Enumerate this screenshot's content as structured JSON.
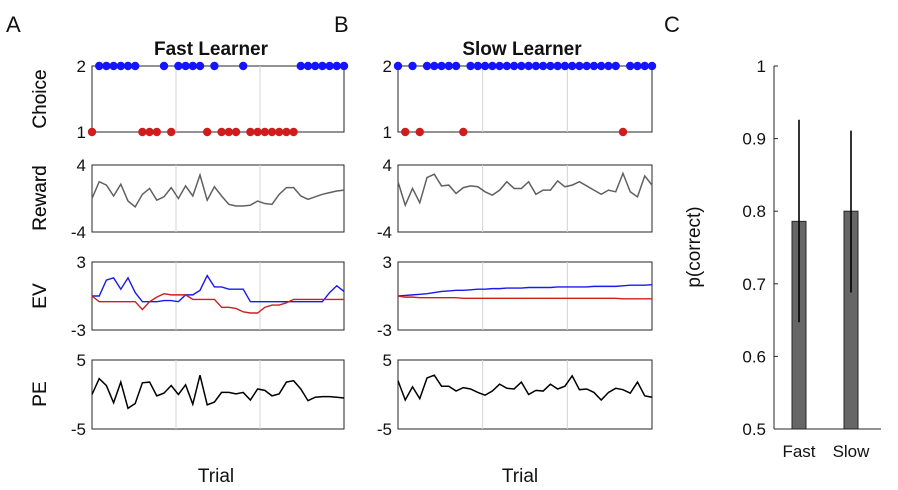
{
  "panel_letters": [
    "A",
    "B",
    "C"
  ],
  "colors": {
    "choice_high": "#1414ff",
    "choice_low": "#d01c1c",
    "ev_option2": "#1a1aee",
    "ev_option1": "#cc1f1f",
    "reward_line": "#606060",
    "pe_line": "#000000",
    "bar_fill": "#666666",
    "grid": "#d3d3d3"
  },
  "chart_data": [
    {
      "type": "scatter",
      "panel": "A",
      "title": "Fast Learner",
      "ylabel": "Choice",
      "xlabel": "Trial",
      "ylim": [
        1,
        2
      ],
      "yticks": [
        "2",
        "1"
      ],
      "x": [
        1,
        2,
        3,
        4,
        5,
        6,
        7,
        8,
        9,
        10,
        11,
        12,
        13,
        14,
        15,
        16,
        17,
        18,
        19,
        20,
        21,
        22,
        23,
        24,
        25,
        26,
        27,
        28,
        29,
        30,
        31,
        32,
        33,
        34,
        35,
        36
      ],
      "values": [
        1,
        2,
        2,
        2,
        2,
        2,
        2,
        1,
        1,
        1,
        2,
        1,
        2,
        2,
        2,
        2,
        1,
        2,
        1,
        1,
        1,
        2,
        1,
        1,
        1,
        1,
        1,
        1,
        1,
        2,
        2,
        2,
        2,
        2,
        2,
        2
      ],
      "grid": true
    },
    {
      "type": "line",
      "panel": "A",
      "ylabel": "Reward",
      "ylim": [
        -4,
        4
      ],
      "yticks": [
        "4",
        "-4"
      ],
      "x": [
        1,
        2,
        3,
        4,
        5,
        6,
        7,
        8,
        9,
        10,
        11,
        12,
        13,
        14,
        15,
        16,
        17,
        18,
        19,
        20,
        21,
        22,
        23,
        24,
        25,
        26,
        27,
        28,
        29,
        30,
        31,
        32,
        33,
        34,
        35,
        36
      ],
      "values": [
        0.0,
        2.0,
        1.6,
        0.3,
        1.7,
        -0.3,
        -1.0,
        0.5,
        1.2,
        -0.2,
        0.2,
        1.3,
        0.0,
        1.5,
        0.3,
        2.8,
        -0.2,
        1.4,
        0.3,
        -0.7,
        -0.9,
        -0.9,
        -0.8,
        -0.3,
        -0.6,
        -0.7,
        0.5,
        1.3,
        1.3,
        0.3,
        -0.1,
        0.2,
        0.5,
        0.7,
        0.9,
        1.0
      ],
      "grid": true
    },
    {
      "type": "line",
      "panel": "A",
      "ylabel": "EV",
      "ylim": [
        -3,
        3
      ],
      "yticks": [
        "3",
        "-3"
      ],
      "x": [
        1,
        2,
        3,
        4,
        5,
        6,
        7,
        8,
        9,
        10,
        11,
        12,
        13,
        14,
        15,
        16,
        17,
        18,
        19,
        20,
        21,
        22,
        23,
        24,
        25,
        26,
        27,
        28,
        29,
        30,
        31,
        32,
        33,
        34,
        35,
        36
      ],
      "series": [
        {
          "values": [
            0.0,
            0.0,
            1.4,
            1.6,
            0.6,
            1.6,
            0.3,
            -0.5,
            -0.5,
            -0.5,
            -0.4,
            -0.4,
            -0.5,
            0.1,
            0.1,
            0.5,
            1.8,
            0.8,
            0.8,
            0.6,
            0.6,
            0.6,
            -0.5,
            -0.5,
            -0.5,
            -0.5,
            -0.5,
            -0.5,
            -0.5,
            -0.5,
            -0.5,
            -0.5,
            -0.5,
            0.3,
            0.9,
            0.4
          ]
        },
        {
          "values": [
            0.0,
            -0.5,
            -0.5,
            -0.5,
            -0.5,
            -0.5,
            -0.5,
            -1.2,
            -0.5,
            -0.1,
            0.2,
            0.1,
            0.1,
            0.1,
            -0.3,
            -0.3,
            -0.3,
            -0.3,
            -1.0,
            -1.0,
            -1.1,
            -1.4,
            -1.5,
            -1.5,
            -1.0,
            -0.8,
            -0.8,
            -0.6,
            -0.3,
            -0.3,
            -0.3,
            -0.3,
            -0.3,
            -0.3,
            -0.3,
            -0.3
          ]
        }
      ],
      "grid": true
    },
    {
      "type": "line",
      "panel": "A",
      "ylabel": "PE",
      "ylim": [
        -5,
        5
      ],
      "yticks": [
        "5",
        "-5"
      ],
      "x": [
        1,
        2,
        3,
        4,
        5,
        6,
        7,
        8,
        9,
        10,
        11,
        12,
        13,
        14,
        15,
        16,
        17,
        18,
        19,
        20,
        21,
        22,
        23,
        24,
        25,
        26,
        27,
        28,
        29,
        30,
        31,
        32,
        33,
        34,
        35,
        36
      ],
      "values": [
        0.0,
        2.3,
        1.3,
        -1.2,
        1.8,
        -2.0,
        -1.3,
        1.7,
        1.8,
        -0.2,
        0.2,
        1.3,
        0.0,
        1.4,
        -1.4,
        2.8,
        -1.5,
        -1.1,
        0.3,
        0.3,
        0.1,
        0.3,
        -0.8,
        0.8,
        0.6,
        -0.2,
        0.1,
        1.8,
        2.0,
        0.8,
        -0.9,
        -0.4,
        -0.3,
        -0.3,
        -0.4,
        -0.5
      ],
      "grid": true
    },
    {
      "type": "scatter",
      "panel": "B",
      "title": "Slow Learner",
      "ylabel": "Choice",
      "xlabel": "Trial",
      "ylim": [
        1,
        2
      ],
      "yticks": [
        "2",
        "1"
      ],
      "x": [
        1,
        2,
        3,
        4,
        5,
        6,
        7,
        8,
        9,
        10,
        11,
        12,
        13,
        14,
        15,
        16,
        17,
        18,
        19,
        20,
        21,
        22,
        23,
        24,
        25,
        26,
        27,
        28,
        29,
        30,
        31,
        32,
        33,
        34,
        35,
        36
      ],
      "values": [
        2,
        1,
        2,
        1,
        2,
        2,
        2,
        2,
        2,
        1,
        2,
        2,
        2,
        2,
        2,
        2,
        2,
        2,
        2,
        2,
        2,
        2,
        2,
        2,
        2,
        2,
        2,
        2,
        2,
        2,
        2,
        1,
        2,
        2,
        2,
        2
      ],
      "grid": true
    },
    {
      "type": "line",
      "panel": "B",
      "ylabel": "Reward",
      "ylim": [
        -4,
        4
      ],
      "yticks": [
        "4",
        "-4"
      ],
      "x": [
        1,
        2,
        3,
        4,
        5,
        6,
        7,
        8,
        9,
        10,
        11,
        12,
        13,
        14,
        15,
        16,
        17,
        18,
        19,
        20,
        21,
        22,
        23,
        24,
        25,
        26,
        27,
        28,
        29,
        30,
        31,
        32,
        33,
        34,
        35,
        36
      ],
      "values": [
        2.0,
        -0.8,
        1.2,
        -0.5,
        2.5,
        2.9,
        1.5,
        1.6,
        0.6,
        1.3,
        1.5,
        1.4,
        0.8,
        0.4,
        1.0,
        2.0,
        1.2,
        1.2,
        2.0,
        0.5,
        1.0,
        1.0,
        2.1,
        1.4,
        1.6,
        2.0,
        1.5,
        1.0,
        0.5,
        1.0,
        0.8,
        3.0,
        0.8,
        0.2,
        2.7,
        1.6
      ],
      "grid": true
    },
    {
      "type": "line",
      "panel": "B",
      "ylabel": "EV",
      "ylim": [
        -3,
        3
      ],
      "yticks": [
        "3",
        "-3"
      ],
      "x": [
        1,
        2,
        3,
        4,
        5,
        6,
        7,
        8,
        9,
        10,
        11,
        12,
        13,
        14,
        15,
        16,
        17,
        18,
        19,
        20,
        21,
        22,
        23,
        24,
        25,
        26,
        27,
        28,
        29,
        30,
        31,
        32,
        33,
        34,
        35,
        36
      ],
      "series": [
        {
          "values": [
            0.0,
            0.05,
            0.1,
            0.15,
            0.2,
            0.3,
            0.4,
            0.45,
            0.5,
            0.5,
            0.55,
            0.6,
            0.6,
            0.65,
            0.65,
            0.7,
            0.7,
            0.7,
            0.75,
            0.75,
            0.75,
            0.75,
            0.8,
            0.8,
            0.8,
            0.8,
            0.8,
            0.85,
            0.85,
            0.85,
            0.85,
            0.9,
            0.95,
            0.95,
            0.95,
            1.0
          ]
        },
        {
          "values": [
            0.0,
            -0.1,
            -0.1,
            -0.15,
            -0.15,
            -0.15,
            -0.15,
            -0.15,
            -0.15,
            -0.2,
            -0.2,
            -0.2,
            -0.2,
            -0.2,
            -0.2,
            -0.2,
            -0.2,
            -0.2,
            -0.2,
            -0.2,
            -0.2,
            -0.2,
            -0.2,
            -0.2,
            -0.2,
            -0.2,
            -0.2,
            -0.2,
            -0.2,
            -0.2,
            -0.2,
            -0.25,
            -0.25,
            -0.25,
            -0.25,
            -0.25
          ]
        }
      ],
      "grid": true
    },
    {
      "type": "line",
      "panel": "B",
      "ylabel": "PE",
      "ylim": [
        -5,
        5
      ],
      "yticks": [
        "5",
        "-5"
      ],
      "x": [
        1,
        2,
        3,
        4,
        5,
        6,
        7,
        8,
        9,
        10,
        11,
        12,
        13,
        14,
        15,
        16,
        17,
        18,
        19,
        20,
        21,
        22,
        23,
        24,
        25,
        26,
        27,
        28,
        29,
        30,
        31,
        32,
        33,
        34,
        35,
        36
      ],
      "values": [
        2.0,
        -0.8,
        1.1,
        -0.6,
        2.4,
        2.8,
        1.2,
        1.2,
        0.5,
        1.0,
        0.8,
        0.3,
        -0.1,
        0.5,
        1.5,
        0.9,
        0.8,
        1.8,
        0.0,
        0.6,
        0.5,
        1.5,
        0.8,
        1.2,
        2.7,
        0.7,
        0.8,
        0.3,
        -0.8,
        0.3,
        0.9,
        0.7,
        0.2,
        1.8,
        -0.2,
        -0.4
      ],
      "grid": true
    },
    {
      "type": "bar",
      "panel": "C",
      "categories": [
        "Fast",
        "Slow"
      ],
      "values": [
        0.786,
        0.8
      ],
      "error_low": [
        0.647,
        0.688
      ],
      "error_high": [
        0.926,
        0.911
      ],
      "ylabel": "p(correct)",
      "ylim": [
        0.5,
        1
      ],
      "yticks": [
        "1",
        "0.9",
        "0.8",
        "0.7",
        "0.6",
        "0.5"
      ],
      "grid": false
    }
  ]
}
